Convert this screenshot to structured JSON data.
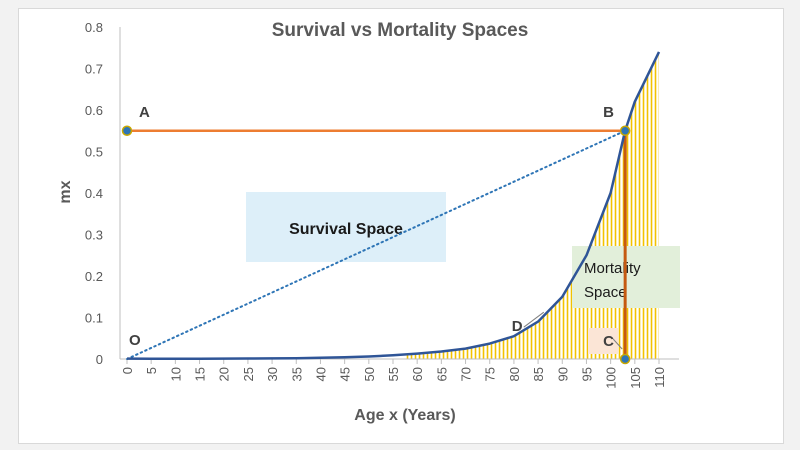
{
  "chart_data": {
    "type": "area",
    "title": "Survival vs Mortality Spaces",
    "xlabel": "Age x (Years)",
    "ylabel": "mx",
    "xlim": [
      0,
      110
    ],
    "ylim": [
      0,
      0.8
    ],
    "x_ticks": [
      "0",
      "5",
      "10",
      "15",
      "20",
      "25",
      "30",
      "35",
      "40",
      "45",
      "50",
      "55",
      "60",
      "65",
      "70",
      "75",
      "80",
      "85",
      "90",
      "95",
      "100",
      "105",
      "110"
    ],
    "y_ticks": [
      "0",
      "0.1",
      "0.2",
      "0.3",
      "0.4",
      "0.5",
      "0.6",
      "0.7",
      "0.8"
    ],
    "series": [
      {
        "name": "mx",
        "x": [
          0,
          5,
          10,
          15,
          20,
          25,
          30,
          35,
          40,
          45,
          50,
          55,
          60,
          65,
          70,
          75,
          80,
          85,
          90,
          95,
          100,
          103,
          105,
          110
        ],
        "values": [
          0.001,
          0.0005,
          0.0005,
          0.0008,
          0.001,
          0.0012,
          0.0015,
          0.002,
          0.003,
          0.004,
          0.006,
          0.009,
          0.013,
          0.018,
          0.025,
          0.037,
          0.055,
          0.09,
          0.15,
          0.25,
          0.4,
          0.55,
          0.62,
          0.74
        ]
      }
    ],
    "horizontal_line": {
      "from_x": 0,
      "to_x": 103,
      "y": 0.55,
      "color": "#ed7d31"
    },
    "dotted_line": {
      "from": [
        0,
        0
      ],
      "to": [
        103,
        0.55
      ],
      "color": "#2e75b6"
    },
    "vertical_line": {
      "x": 103,
      "from_y": 0,
      "to_y": 0.55,
      "color": "#c55a11"
    },
    "points": [
      {
        "label": "A",
        "x": 0,
        "y": 0.55
      },
      {
        "label": "B",
        "x": 103,
        "y": 0.55
      },
      {
        "label": "C",
        "x": 103,
        "y": 0
      },
      {
        "label": "O",
        "x": 0,
        "y": 0
      },
      {
        "label": "D",
        "x": 87,
        "y": 0.12
      }
    ],
    "annotations": {
      "survival": "Survival Space",
      "mortality_line1": "Mortality",
      "mortality_line2": "Space"
    },
    "colors": {
      "curve": "#2f5597",
      "hatch": "#f2c200",
      "survival_box": "#ddeff9",
      "mortality_box": "#e2efda",
      "c_box": "#fbe5d6",
      "point_fill": "#2e75b6",
      "point_stroke": "#c9a800"
    }
  }
}
